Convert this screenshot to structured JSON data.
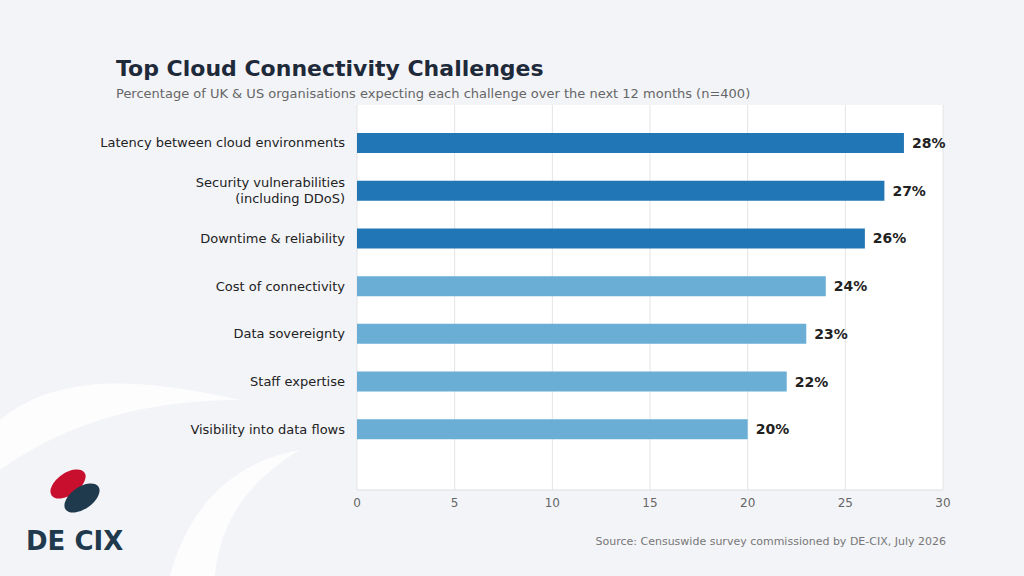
{
  "chart_data": {
    "type": "bar",
    "orientation": "horizontal",
    "title": "Top Cloud Connectivity Challenges",
    "subtitle": "Percentage of UK & US organisations expecting each challenge over the next 12 months (n=400)",
    "source": "Source: Censuswide survey commissioned by DE-CIX, July 2026",
    "logo_text": "DE CIX",
    "categories": [
      "Latency between cloud environments",
      "Security vulnerabilities (including DDoS)",
      "Downtime & reliability",
      "Cost of connectivity",
      "Data sovereignty",
      "Staff expertise",
      "Visibility into data flows"
    ],
    "values": [
      28,
      27,
      26,
      24,
      23,
      22,
      20
    ],
    "value_labels": [
      "28%",
      "27%",
      "26%",
      "24%",
      "23%",
      "22%",
      "20%"
    ],
    "colors": [
      "#2176b5",
      "#2176b5",
      "#2176b5",
      "#6aaed6",
      "#6aaed6",
      "#6aaed6",
      "#6aaed6"
    ],
    "xlim": [
      0,
      30
    ],
    "xticks": [
      0,
      5,
      10,
      15,
      20,
      25,
      30
    ],
    "grid": true,
    "data_labels": true
  }
}
